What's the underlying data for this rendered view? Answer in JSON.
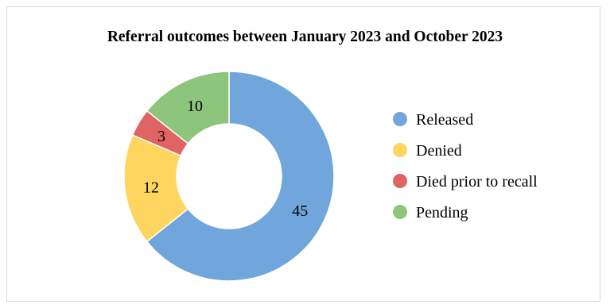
{
  "chart_data": {
    "type": "pie",
    "variant": "doughnut",
    "title": "Referral outcomes between January 2023 and October 2023",
    "slices": [
      {
        "label": "Released",
        "value": 45,
        "color": "#70a6dc"
      },
      {
        "label": "Denied",
        "value": 12,
        "color": "#fdd55f"
      },
      {
        "label": "Died prior to recall",
        "value": 3,
        "color": "#e06464"
      },
      {
        "label": "Pending",
        "value": 10,
        "color": "#8ec57c"
      }
    ],
    "data_labels": true,
    "legend_position": "right"
  }
}
